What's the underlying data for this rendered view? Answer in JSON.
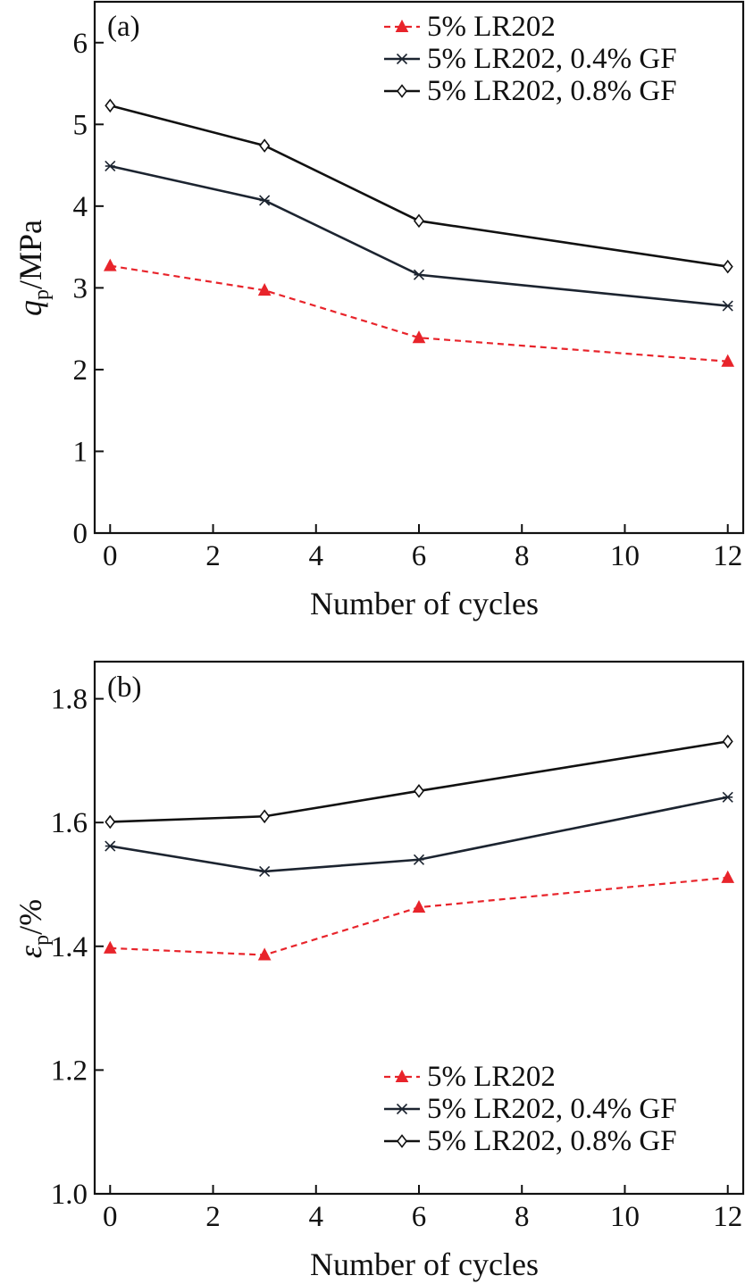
{
  "chart_data": [
    {
      "type": "line",
      "panel_label": "(a)",
      "xlabel": "Number of cycles",
      "ylabel_main": "q",
      "ylabel_sub": "p",
      "ylabel_rest": "/MPa",
      "x": [
        0,
        3,
        6,
        12
      ],
      "xlim": [
        -0.3,
        12.3
      ],
      "ylim": [
        0,
        6.5
      ],
      "xticks": [
        "0",
        "2",
        "4",
        "6",
        "8",
        "10",
        "12"
      ],
      "xtick_values": [
        0,
        2,
        4,
        6,
        8,
        10,
        12
      ],
      "yticks": [
        "0",
        "1",
        "2",
        "3",
        "4",
        "5",
        "6"
      ],
      "ytick_values": [
        0,
        1,
        2,
        3,
        4,
        5,
        6
      ],
      "grid": false,
      "legend_position": "top-right",
      "series": [
        {
          "name": "5% LR202",
          "values": [
            3.27,
            2.97,
            2.39,
            2.1
          ],
          "color": "#e8242b",
          "dash": true,
          "marker": "triangle"
        },
        {
          "name": "5% LR202, 0.4% GF",
          "values": [
            4.49,
            4.07,
            3.16,
            2.78
          ],
          "color": "#1c2430",
          "dash": false,
          "marker": "asterisk"
        },
        {
          "name": "5% LR202, 0.8% GF",
          "values": [
            5.23,
            4.74,
            3.82,
            3.26
          ],
          "color": "#111111",
          "dash": false,
          "marker": "diamond"
        }
      ]
    },
    {
      "type": "line",
      "panel_label": "(b)",
      "xlabel": "Number of cycles",
      "ylabel_main": "ε",
      "ylabel_sub": "p",
      "ylabel_rest": "/%",
      "x": [
        0,
        3,
        6,
        12
      ],
      "xlim": [
        -0.3,
        12.3
      ],
      "ylim": [
        1.0,
        1.86
      ],
      "xticks": [
        "0",
        "2",
        "4",
        "6",
        "8",
        "10",
        "12"
      ],
      "xtick_values": [
        0,
        2,
        4,
        6,
        8,
        10,
        12
      ],
      "yticks": [
        "1.0",
        "1.2",
        "1.4",
        "1.6",
        "1.8"
      ],
      "ytick_values": [
        1.0,
        1.2,
        1.4,
        1.6,
        1.8
      ],
      "grid": false,
      "legend_position": "bottom-right",
      "series": [
        {
          "name": "5% LR202",
          "values": [
            1.397,
            1.386,
            1.463,
            1.511
          ],
          "color": "#e8242b",
          "dash": true,
          "marker": "triangle"
        },
        {
          "name": "5% LR202, 0.4% GF",
          "values": [
            1.562,
            1.521,
            1.54,
            1.641
          ],
          "color": "#1c2430",
          "dash": false,
          "marker": "asterisk"
        },
        {
          "name": "5% LR202, 0.8% GF",
          "values": [
            1.601,
            1.61,
            1.651,
            1.731
          ],
          "color": "#111111",
          "dash": false,
          "marker": "diamond"
        }
      ]
    }
  ]
}
